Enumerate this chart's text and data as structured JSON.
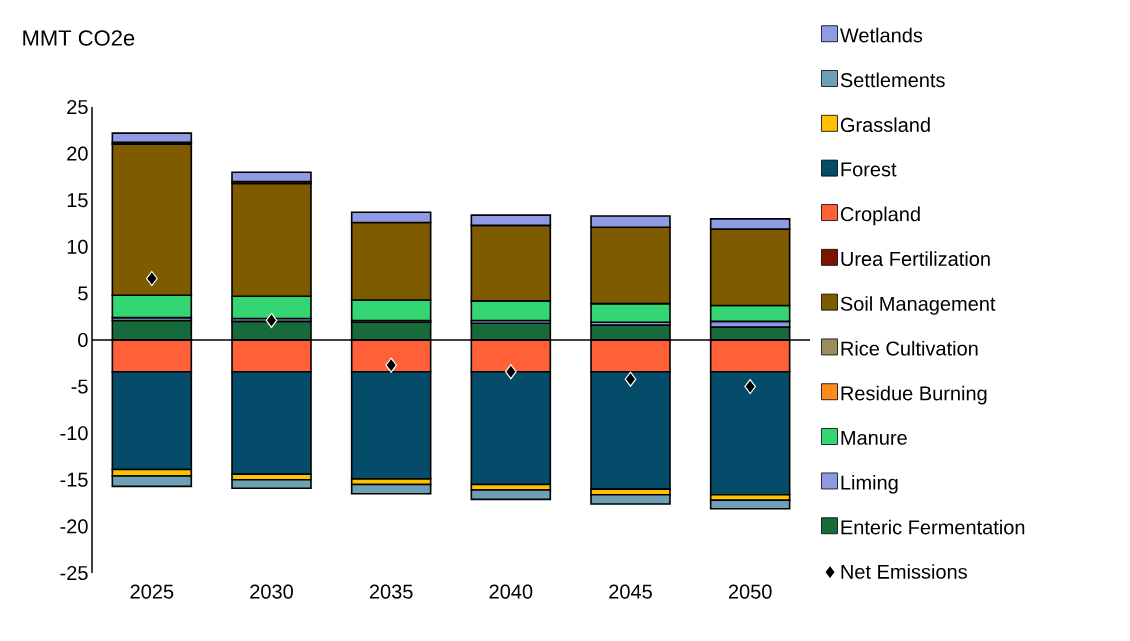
{
  "chart_data": {
    "type": "bar",
    "stacked": true,
    "ylabel": "MMT CO2e",
    "categories": [
      "2025",
      "2030",
      "2035",
      "2040",
      "2045",
      "2050"
    ],
    "ylim": [
      -25,
      25
    ],
    "yticks": [
      -25,
      -20,
      -15,
      -10,
      -5,
      0,
      5,
      10,
      15,
      20,
      25
    ],
    "legend": "right",
    "series": [
      {
        "name": "Enteric Fermentation",
        "color": "#176b3a",
        "values": [
          2.1,
          2.0,
          1.9,
          1.8,
          1.6,
          1.4
        ]
      },
      {
        "name": "Liming",
        "color": "#9098e6",
        "values": [
          0.3,
          0.3,
          0.2,
          0.3,
          0.3,
          0.6
        ]
      },
      {
        "name": "Manure",
        "color": "#33d672",
        "values": [
          2.4,
          2.4,
          2.2,
          2.1,
          2.0,
          1.7
        ]
      },
      {
        "name": "Residue Burning",
        "color": "#ff8c1a",
        "values": [
          0,
          0,
          0,
          0,
          0,
          0
        ]
      },
      {
        "name": "Rice Cultivation",
        "color": "#9c8c5c",
        "values": [
          0,
          0,
          0,
          0,
          0,
          0
        ]
      },
      {
        "name": "Soil Management",
        "color": "#7f5b00",
        "values": [
          16.2,
          12.1,
          8.3,
          8.1,
          8.2,
          8.2
        ]
      },
      {
        "name": "Urea Fertilization",
        "color": "#7b1500",
        "values": [
          0.2,
          0.2,
          null,
          null,
          null,
          null
        ]
      },
      {
        "name": "Cropland",
        "color": "#ff6038",
        "values": [
          -3.4,
          -3.4,
          -3.4,
          -3.4,
          -3.4,
          -3.4
        ]
      },
      {
        "name": "Forest",
        "color": "#044c6a",
        "values": [
          -10.5,
          -11.0,
          -11.5,
          -12.1,
          -12.6,
          -13.2
        ]
      },
      {
        "name": "Grassland",
        "color": "#ffc000",
        "values": [
          -0.7,
          -0.6,
          -0.6,
          -0.6,
          -0.6,
          -0.6
        ]
      },
      {
        "name": "Settlements",
        "color": "#6f9fb5",
        "values": [
          -1.1,
          -0.9,
          -1.0,
          -1.0,
          -1.0,
          -0.9
        ]
      },
      {
        "name": "Wetlands",
        "color": "#8f9be3",
        "values": [
          1.0,
          1.0,
          1.1,
          1.1,
          1.2,
          1.1
        ]
      },
      {
        "name": "Net Emissions",
        "type": "scatter",
        "marker": "diamond",
        "color": "#000000",
        "values": [
          6.6,
          2.1,
          -2.7,
          -3.4,
          -4.2,
          -5.0
        ]
      }
    ]
  }
}
